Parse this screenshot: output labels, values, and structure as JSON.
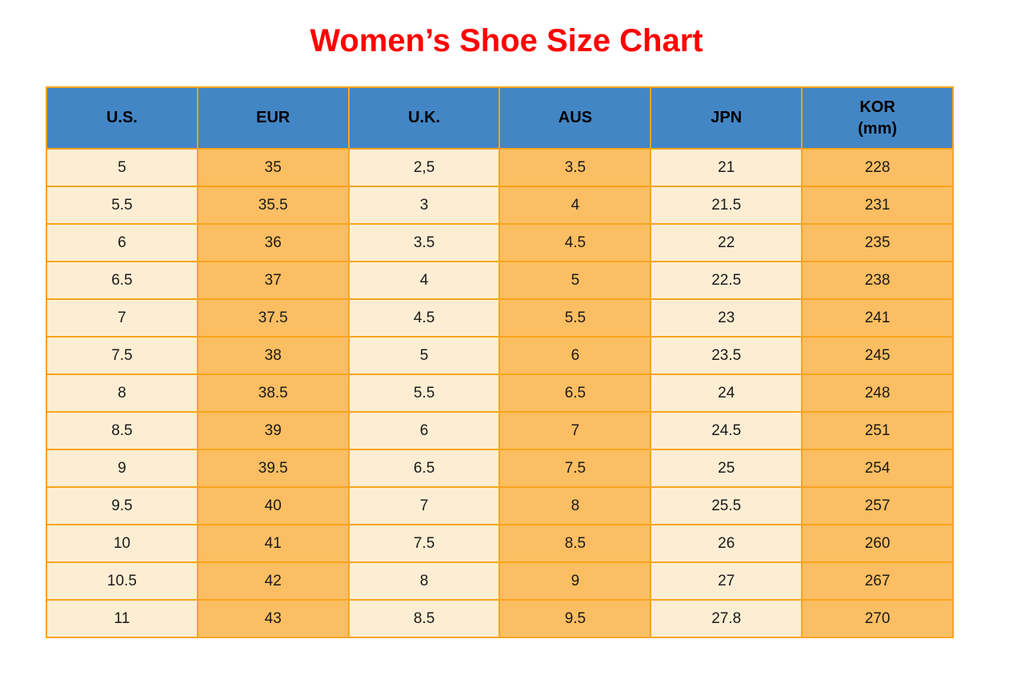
{
  "page": {
    "title": "Women’s Shoe Size Chart"
  },
  "colors": {
    "title_red": "#FF0000",
    "header_blue": "#4386C5",
    "cell_cream": "#FDEED3",
    "cell_orange": "#FCBE63",
    "border_orange": "#F8A41D",
    "text_dark": "#1A1A1A",
    "background": "#FFFFFF"
  },
  "table": {
    "headers": [
      {
        "label": "U.S.",
        "sub": ""
      },
      {
        "label": "EUR",
        "sub": ""
      },
      {
        "label": "U.K.",
        "sub": ""
      },
      {
        "label": "AUS",
        "sub": ""
      },
      {
        "label": "JPN",
        "sub": ""
      },
      {
        "label": "KOR",
        "sub": "(mm)"
      }
    ]
  },
  "chart_data": {
    "type": "table",
    "title": "Women’s Shoe Size Chart",
    "columns": [
      "U.S.",
      "EUR",
      "U.K.",
      "AUS",
      "JPN",
      "KOR (mm)"
    ],
    "rows": [
      [
        "5",
        "35",
        "2,5",
        "3.5",
        "21",
        "228"
      ],
      [
        "5.5",
        "35.5",
        "3",
        "4",
        "21.5",
        "231"
      ],
      [
        "6",
        "36",
        "3.5",
        "4.5",
        "22",
        "235"
      ],
      [
        "6.5",
        "37",
        "4",
        "5",
        "22.5",
        "238"
      ],
      [
        "7",
        "37.5",
        "4.5",
        "5.5",
        "23",
        "241"
      ],
      [
        "7.5",
        "38",
        "5",
        "6",
        "23.5",
        "245"
      ],
      [
        "8",
        "38.5",
        "5.5",
        "6.5",
        "24",
        "248"
      ],
      [
        "8.5",
        "39",
        "6",
        "7",
        "24.5",
        "251"
      ],
      [
        "9",
        "39.5",
        "6.5",
        "7.5",
        "25",
        "254"
      ],
      [
        "9.5",
        "40",
        "7",
        "8",
        "25.5",
        "257"
      ],
      [
        "10",
        "41",
        "7.5",
        "8.5",
        "26",
        "260"
      ],
      [
        "10.5",
        "42",
        "8",
        "9",
        "27",
        "267"
      ],
      [
        "11",
        "43",
        "8.5",
        "9.5",
        "27.8",
        "270"
      ]
    ]
  }
}
